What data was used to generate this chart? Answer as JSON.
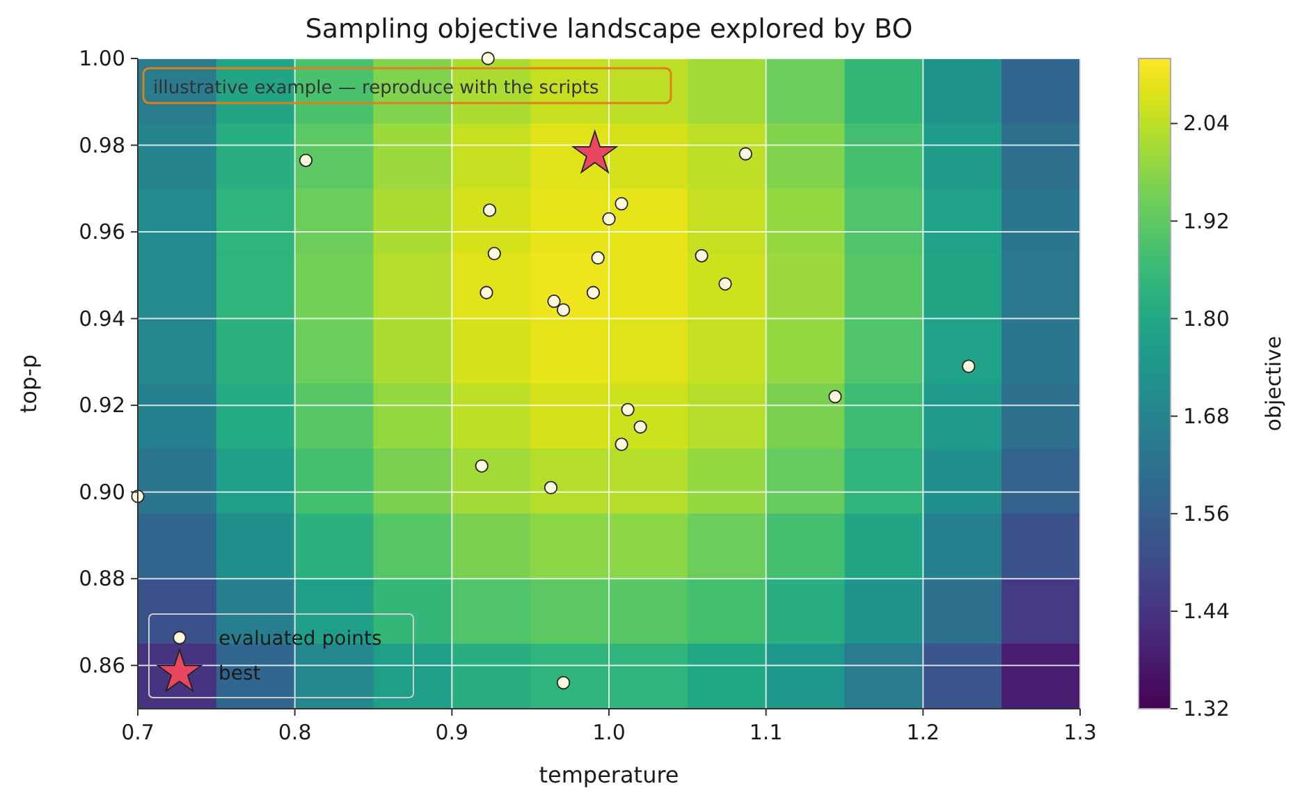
{
  "chart_data": [
    {
      "type": "heatmap",
      "clabel": "objective",
      "categories": [
        null,
        null,
        null,
        null,
        null,
        null,
        null,
        null,
        null,
        null,
        null,
        null
      ],
      "y_categories": [
        null,
        null,
        null,
        null,
        null,
        null,
        null,
        null,
        null,
        null
      ],
      "clim": [
        1.32,
        2.12
      ],
      "cticks": [
        {
          "value": 1.32,
          "label": "1.32"
        },
        {
          "value": 1.44,
          "label": "1.44"
        },
        {
          "value": 1.56,
          "label": "1.56"
        },
        {
          "value": 1.68,
          "label": "1.68"
        },
        {
          "value": 1.8,
          "label": "1.80"
        },
        {
          "value": 1.92,
          "label": "1.92"
        },
        {
          "value": 2.04,
          "label": "2.04"
        }
      ],
      "cells": [
        [
          1.65,
          1.79,
          1.89,
          1.97,
          2.02,
          2.05,
          2.04,
          2.01,
          1.94,
          1.85,
          1.73,
          1.58
        ],
        [
          1.68,
          1.82,
          1.92,
          2.0,
          2.05,
          2.08,
          2.07,
          2.04,
          1.97,
          1.88,
          1.76,
          1.61
        ],
        [
          1.7,
          1.84,
          1.94,
          2.02,
          2.07,
          2.09,
          2.09,
          2.05,
          1.99,
          1.9,
          1.78,
          1.63
        ],
        [
          1.7,
          1.84,
          1.95,
          2.03,
          2.08,
          2.1,
          2.09,
          2.06,
          2.0,
          1.91,
          1.79,
          1.64
        ],
        [
          1.69,
          1.83,
          1.94,
          2.02,
          2.07,
          2.09,
          2.08,
          2.05,
          1.99,
          1.9,
          1.78,
          1.63
        ],
        [
          1.67,
          1.81,
          1.91,
          1.99,
          2.04,
          2.07,
          2.06,
          2.03,
          1.96,
          1.87,
          1.75,
          1.61
        ],
        [
          1.63,
          1.77,
          1.88,
          1.96,
          2.01,
          2.03,
          2.03,
          1.99,
          1.93,
          1.84,
          1.72,
          1.57
        ],
        [
          1.58,
          1.72,
          1.83,
          1.91,
          1.96,
          1.98,
          1.98,
          1.94,
          1.88,
          1.79,
          1.67,
          1.52
        ],
        [
          1.52,
          1.66,
          1.77,
          1.85,
          1.9,
          1.92,
          1.91,
          1.88,
          1.82,
          1.73,
          1.61,
          1.46
        ],
        [
          1.44,
          1.58,
          1.69,
          1.77,
          1.82,
          1.84,
          1.84,
          1.8,
          1.74,
          1.65,
          1.53,
          1.38
        ]
      ]
    },
    {
      "type": "scatter",
      "title": "Sampling objective landscape explored by BO",
      "xlabel": "temperature",
      "ylabel": "top-p",
      "annotations": [
        "illustrative example — reproduce with the scripts"
      ],
      "xlim": [
        0.7,
        1.3
      ],
      "ylim": [
        0.85,
        1.0
      ],
      "xticks": [
        {
          "value": 0.7,
          "label": "0.7"
        },
        {
          "value": 0.8,
          "label": "0.8"
        },
        {
          "value": 0.9,
          "label": "0.9"
        },
        {
          "value": 1.0,
          "label": "1.0"
        },
        {
          "value": 1.1,
          "label": "1.1"
        },
        {
          "value": 1.2,
          "label": "1.2"
        },
        {
          "value": 1.3,
          "label": "1.3"
        }
      ],
      "yticks": [
        {
          "value": 0.86,
          "label": "0.86"
        },
        {
          "value": 0.88,
          "label": "0.88"
        },
        {
          "value": 0.9,
          "label": "0.90"
        },
        {
          "value": 0.92,
          "label": "0.92"
        },
        {
          "value": 0.94,
          "label": "0.94"
        },
        {
          "value": 0.96,
          "label": "0.96"
        },
        {
          "value": 0.98,
          "label": "0.98"
        },
        {
          "value": 1.0,
          "label": "1.00"
        }
      ],
      "grid": true,
      "legend": "bottom left",
      "series": [
        {
          "type": "scatter",
          "name": "evaluated points",
          "color": "#fbf8dc",
          "marker": "circle",
          "x": [
            0.923,
            0.807,
            1.087,
            0.924,
            1.008,
            1.0,
            0.927,
            0.993,
            1.059,
            0.922,
            0.99,
            0.965,
            0.971,
            1.074,
            1.229,
            1.144,
            1.012,
            1.02,
            1.008,
            0.919,
            0.963,
            0.7,
            0.971
          ],
          "values": [
            1.0,
            0.9765,
            0.978,
            0.965,
            0.9665,
            0.963,
            0.955,
            0.954,
            0.9545,
            0.946,
            0.946,
            0.944,
            0.942,
            0.948,
            0.929,
            0.922,
            0.919,
            0.915,
            0.911,
            0.906,
            0.901,
            0.899,
            0.856
          ]
        },
        {
          "type": "scatter",
          "name": "best",
          "color": "#e8475f",
          "marker": "star",
          "x": [
            0.991
          ],
          "values": [
            0.978
          ]
        }
      ]
    }
  ]
}
